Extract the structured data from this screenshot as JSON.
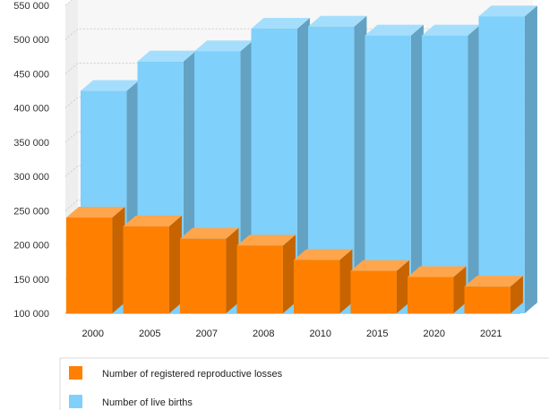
{
  "chart_data": {
    "type": "bar",
    "categories": [
      "2000",
      "2005",
      "2007",
      "2008",
      "2010",
      "2015",
      "2020",
      "2021"
    ],
    "series": [
      {
        "name": "Number of registered reproductive losses",
        "values": [
          240000,
          227000,
          209000,
          199000,
          178000,
          162000,
          153000,
          139000
        ],
        "color": "#ff8000"
      },
      {
        "name": "Number of live births",
        "values": [
          425000,
          468000,
          483000,
          516000,
          519000,
          506000,
          506000,
          534000
        ],
        "color": "#7fd0fa"
      }
    ],
    "y_ticks": [
      "100 000",
      "150 000",
      "200 000",
      "250 000",
      "300 000",
      "350 000",
      "400 000",
      "450 000",
      "500 000",
      "550 000"
    ],
    "ylim": [
      100000,
      550000
    ],
    "grid": true,
    "legend_position": "bottom-left",
    "style": "3d-overlapped"
  }
}
